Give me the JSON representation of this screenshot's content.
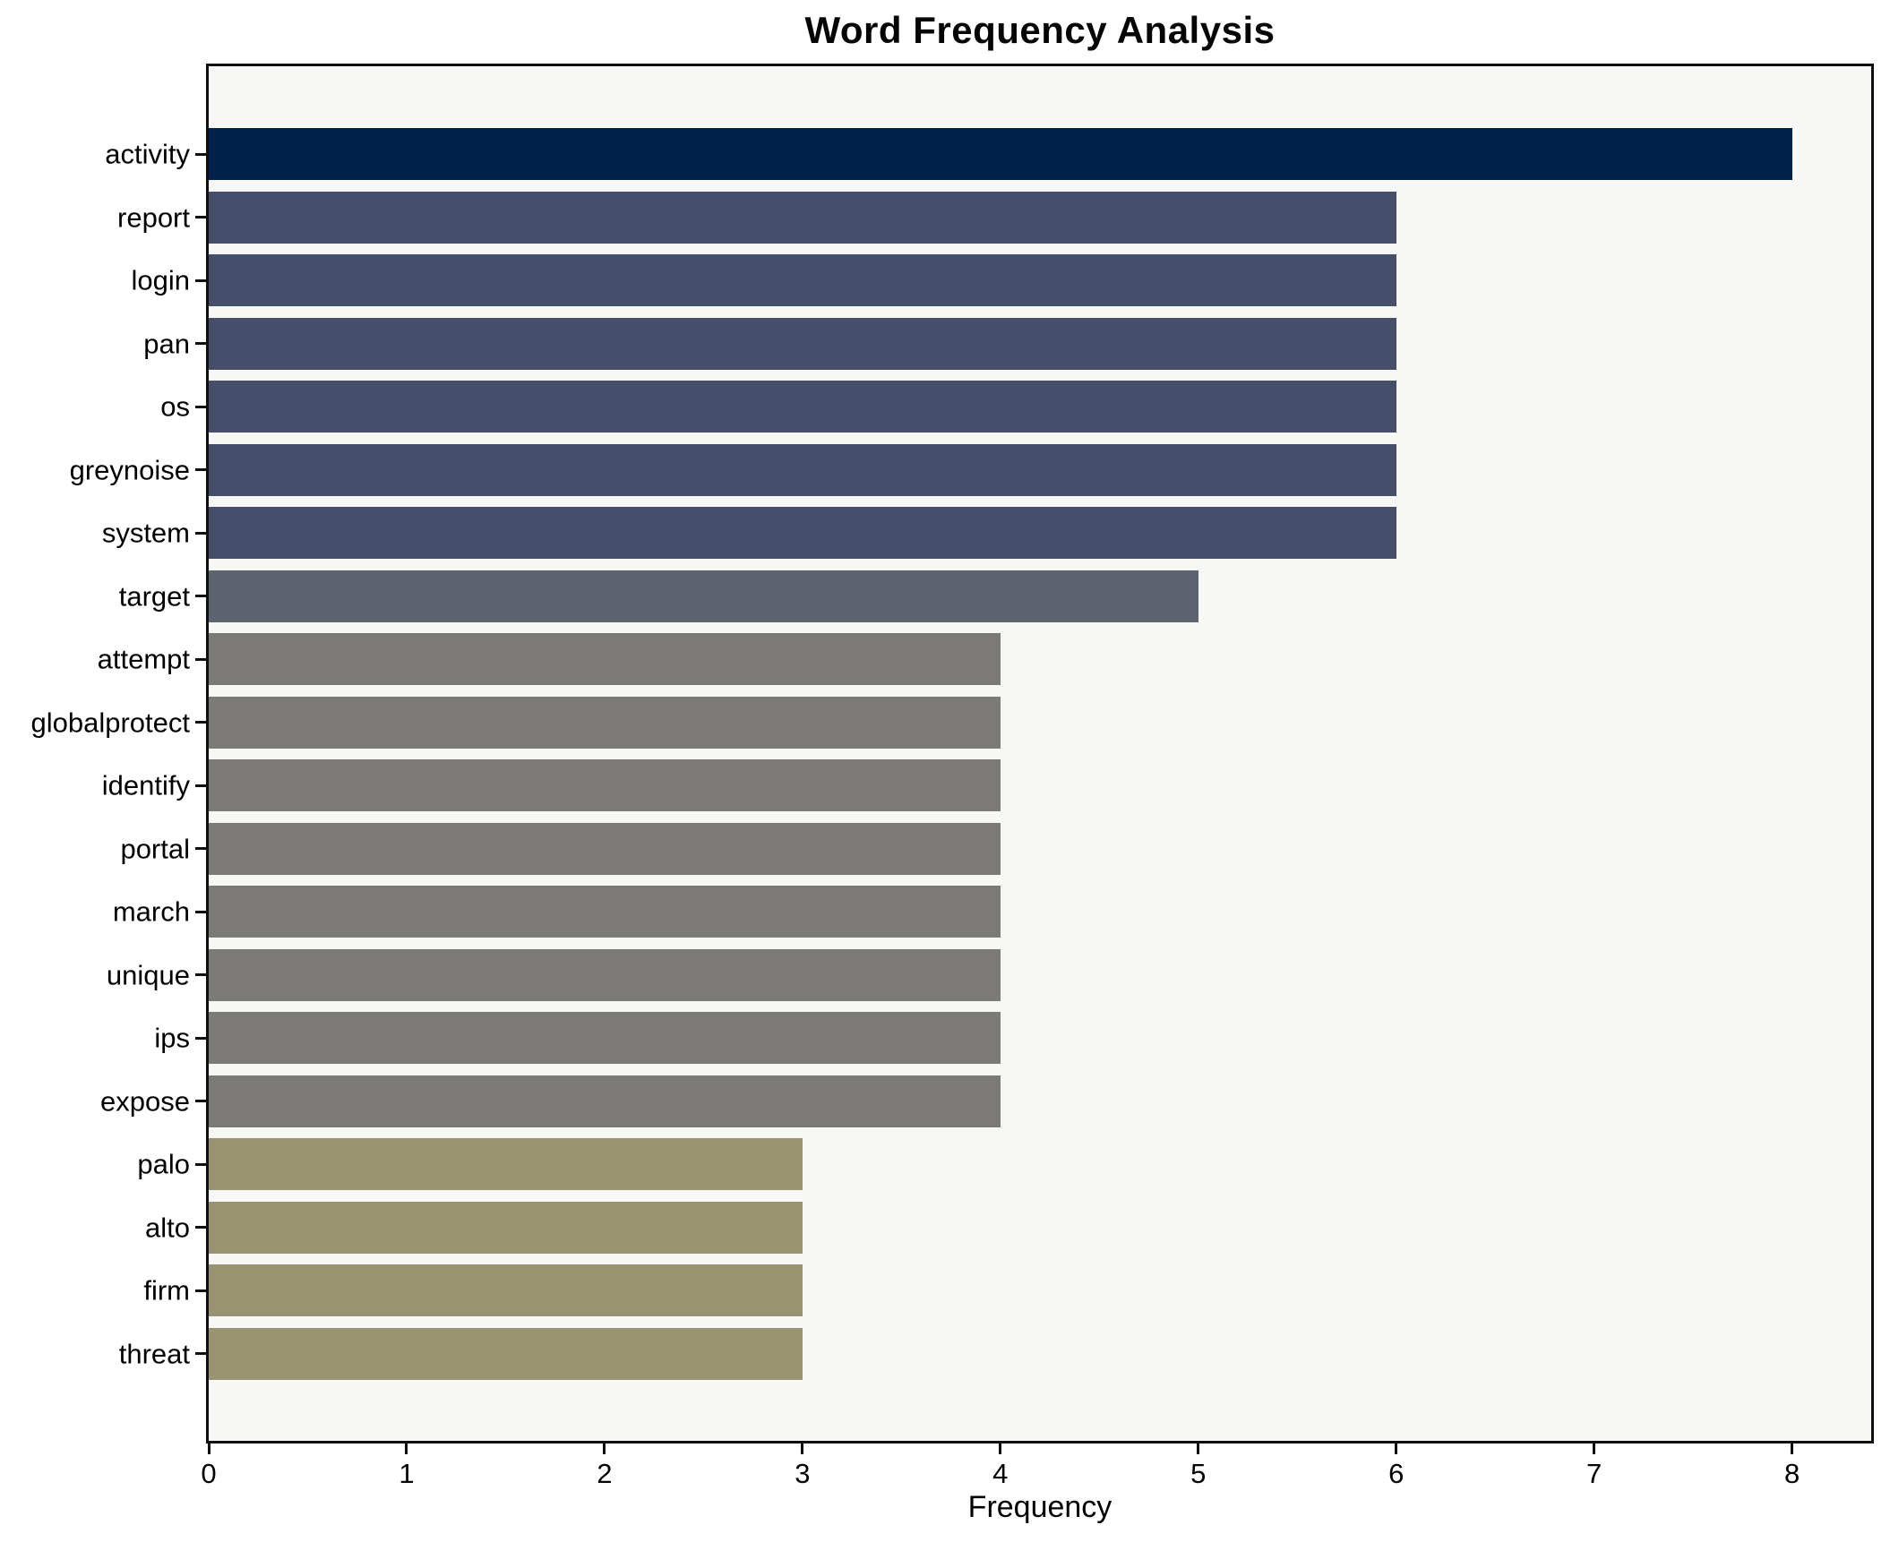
{
  "chart_data": {
    "type": "bar",
    "orientation": "horizontal",
    "title": "Word Frequency Analysis",
    "xlabel": "Frequency",
    "ylabel": "",
    "categories": [
      "activity",
      "report",
      "login",
      "pan",
      "os",
      "greynoise",
      "system",
      "target",
      "attempt",
      "globalprotect",
      "identify",
      "portal",
      "march",
      "unique",
      "ips",
      "expose",
      "palo",
      "alto",
      "firm",
      "threat"
    ],
    "values": [
      8,
      6,
      6,
      6,
      6,
      6,
      6,
      5,
      4,
      4,
      4,
      4,
      4,
      4,
      4,
      4,
      3,
      3,
      3,
      3
    ],
    "bar_colors": [
      "#02224e",
      "#454f6b",
      "#454f6b",
      "#454f6b",
      "#454f6b",
      "#454f6b",
      "#454f6b",
      "#5e6370",
      "#7b7a77",
      "#7b7a77",
      "#7b7a77",
      "#7b7a77",
      "#7b7a77",
      "#7b7a77",
      "#7b7a77",
      "#7b7a77",
      "#9a9372",
      "#9a9372",
      "#9a9372",
      "#9a9372"
    ],
    "xlim": [
      0,
      8.4
    ],
    "x_ticks": [
      0,
      1,
      2,
      3,
      4,
      5,
      6,
      7,
      8
    ],
    "grid": false,
    "legend": "none",
    "palette": {
      "figure_background": "#ffffff",
      "plot_background": "#f7f7f5",
      "spine": "#0f0f0f",
      "text": "#000000"
    }
  }
}
